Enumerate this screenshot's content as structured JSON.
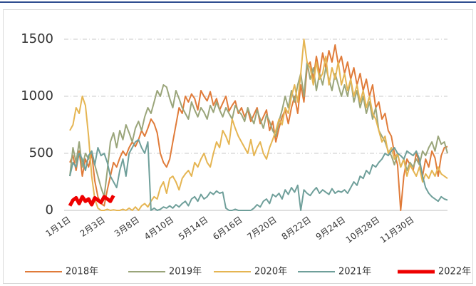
{
  "chart_data": {
    "type": "line",
    "categories": [
      "1月1日",
      null,
      null,
      null,
      null,
      null,
      null,
      null,
      null,
      null,
      null,
      "2月3日",
      null,
      null,
      null,
      null,
      null,
      null,
      null,
      null,
      null,
      null,
      "3月8日",
      null,
      null,
      null,
      null,
      null,
      null,
      null,
      null,
      null,
      null,
      "4月10日",
      null,
      null,
      null,
      null,
      null,
      null,
      null,
      null,
      null,
      null,
      "5月14日",
      null,
      null,
      null,
      null,
      null,
      null,
      null,
      null,
      null,
      null,
      "6月16日",
      null,
      null,
      null,
      null,
      null,
      null,
      null,
      null,
      null,
      null,
      "7月20日",
      null,
      null,
      null,
      null,
      null,
      null,
      null,
      null,
      null,
      null,
      "8月22日",
      null,
      null,
      null,
      null,
      null,
      null,
      null,
      null,
      null,
      null,
      "9月24日",
      null,
      null,
      null,
      null,
      null,
      null,
      null,
      null,
      null,
      null,
      "10月28日",
      null,
      null,
      null,
      null,
      null,
      null,
      null,
      null,
      null,
      null,
      "11月30日",
      null,
      null,
      null,
      null,
      null,
      null,
      null,
      null,
      null,
      null,
      null
    ],
    "ylim": [
      0,
      1500
    ],
    "yticks": [
      0,
      500,
      1000,
      1500
    ],
    "grid": true,
    "series": [
      {
        "name": "2018年",
        "color": "#e07b39",
        "width": 2,
        "values": [
          420,
          480,
          350,
          520,
          300,
          450,
          380,
          500,
          260,
          120,
          60,
          40,
          180,
          300,
          420,
          380,
          460,
          520,
          480,
          550,
          600,
          560,
          620,
          700,
          650,
          720,
          800,
          760,
          680,
          500,
          420,
          380,
          450,
          600,
          750,
          900,
          850,
          1000,
          950,
          1020,
          980,
          880,
          1050,
          1000,
          960,
          1040,
          920,
          980,
          880,
          940,
          1000,
          870,
          920,
          960,
          850,
          900,
          820,
          880,
          780,
          840,
          900,
          760,
          820,
          880,
          700,
          780,
          600,
          720,
          820,
          880,
          760,
          900,
          1000,
          850,
          1100,
          950,
          1250,
          1300,
          1150,
          1350,
          1200,
          1380,
          1250,
          1400,
          1300,
          1450,
          1280,
          1350,
          1200,
          1300,
          1150,
          1250,
          1100,
          1200,
          1050,
          1150,
          1000,
          1100,
          900,
          950,
          800,
          850,
          700,
          650,
          500,
          400,
          0,
          300,
          450,
          400,
          350,
          500,
          420,
          300,
          450,
          380,
          520,
          460,
          300,
          480,
          550,
          560
        ]
      },
      {
        "name": "2019年",
        "color": "#9aa57a",
        "width": 2,
        "values": [
          300,
          550,
          420,
          600,
          380,
          500,
          450,
          520,
          400,
          300,
          200,
          120,
          350,
          600,
          680,
          550,
          700,
          620,
          750,
          680,
          600,
          720,
          780,
          700,
          820,
          900,
          850,
          950,
          1050,
          1000,
          1100,
          1080,
          980,
          900,
          1050,
          980,
          900,
          850,
          800,
          950,
          880,
          820,
          900,
          860,
          800,
          920,
          860,
          950,
          880,
          820,
          900,
          850,
          800,
          920,
          870,
          840,
          780,
          900,
          820,
          760,
          880,
          800,
          720,
          840,
          780,
          700,
          650,
          780,
          880,
          1000,
          900,
          1050,
          950,
          1100,
          1200,
          1000,
          1300,
          1150,
          1250,
          1050,
          1200,
          1100,
          1250,
          1150,
          1050,
          1200,
          1100,
          1000,
          1100,
          1000,
          1150,
          950,
          1050,
          900,
          1000,
          850,
          950,
          800,
          900,
          700,
          650,
          600,
          520,
          480,
          400,
          500,
          380,
          450,
          350,
          420,
          380,
          450,
          400,
          520,
          480,
          550,
          600,
          520,
          650,
          580,
          600,
          500
        ]
      },
      {
        "name": "2020年",
        "color": "#e5b552",
        "width": 2,
        "values": [
          700,
          750,
          900,
          850,
          1000,
          920,
          650,
          300,
          100,
          20,
          0,
          0,
          10,
          0,
          5,
          0,
          0,
          10,
          0,
          20,
          0,
          30,
          0,
          40,
          60,
          30,
          80,
          120,
          100,
          200,
          250,
          150,
          280,
          300,
          250,
          180,
          280,
          320,
          350,
          300,
          420,
          380,
          450,
          500,
          420,
          380,
          500,
          600,
          550,
          700,
          650,
          580,
          800,
          720,
          650,
          600,
          550,
          500,
          620,
          480,
          550,
          600,
          500,
          450,
          550,
          620,
          700,
          800,
          750,
          900,
          850,
          1000,
          1100,
          950,
          1200,
          1500,
          1300,
          1250,
          1100,
          1300,
          1150,
          1200,
          1350,
          1100,
          1250,
          1150,
          1300,
          1100,
          1200,
          1050,
          1150,
          1000,
          1100,
          950,
          1050,
          900,
          1000,
          850,
          800,
          700,
          600,
          650,
          500,
          550,
          450,
          500,
          380,
          450,
          300,
          400,
          350,
          300,
          380,
          250,
          320,
          280,
          350,
          300,
          380,
          320,
          300,
          280
        ]
      },
      {
        "name": "2021年",
        "color": "#6f9f9a",
        "width": 2,
        "values": [
          300,
          420,
          380,
          500,
          450,
          350,
          480,
          520,
          400,
          550,
          480,
          500,
          420,
          300,
          250,
          200,
          350,
          450,
          300,
          500,
          550,
          600,
          620,
          550,
          500,
          600,
          0,
          20,
          0,
          10,
          30,
          20,
          40,
          20,
          50,
          30,
          60,
          80,
          40,
          100,
          120,
          80,
          140,
          100,
          120,
          160,
          140,
          170,
          150,
          160,
          20,
          0,
          0,
          10,
          0,
          0,
          0,
          0,
          0,
          20,
          50,
          30,
          80,
          100,
          60,
          140,
          120,
          150,
          100,
          180,
          140,
          200,
          160,
          220,
          0,
          180,
          150,
          130,
          170,
          200,
          150,
          180,
          160,
          140,
          190,
          150,
          170,
          160,
          180,
          150,
          200,
          250,
          220,
          300,
          280,
          350,
          320,
          400,
          380,
          420,
          450,
          500,
          480,
          520,
          550,
          500,
          480,
          450,
          520,
          500,
          480,
          520,
          450,
          300,
          200,
          150,
          120,
          100,
          80,
          120,
          100,
          90
        ]
      },
      {
        "name": "2022年",
        "color": "#ee0000",
        "width": 5,
        "values": [
          40,
          90,
          110,
          60,
          120,
          80,
          100,
          50,
          110,
          90,
          70,
          120,
          100,
          80,
          130,
          null,
          null,
          null,
          null,
          null,
          null,
          null,
          null,
          null,
          null,
          null,
          null,
          null,
          null,
          null,
          null,
          null,
          null,
          null,
          null,
          null,
          null,
          null,
          null,
          null,
          null,
          null,
          null,
          null,
          null,
          null,
          null,
          null,
          null,
          null,
          null,
          null,
          null,
          null,
          null,
          null,
          null,
          null,
          null,
          null,
          null,
          null,
          null,
          null,
          null,
          null,
          null,
          null,
          null,
          null,
          null,
          null,
          null,
          null,
          null,
          null,
          null,
          null,
          null,
          null,
          null,
          null,
          null,
          null,
          null,
          null,
          null,
          null,
          null,
          null,
          null,
          null,
          null,
          null,
          null,
          null,
          null,
          null,
          null,
          null,
          null,
          null,
          null,
          null,
          null,
          null,
          null,
          null,
          null,
          null,
          null,
          null,
          null,
          null,
          null,
          null,
          null,
          null,
          null,
          null,
          null,
          null
        ]
      }
    ]
  }
}
